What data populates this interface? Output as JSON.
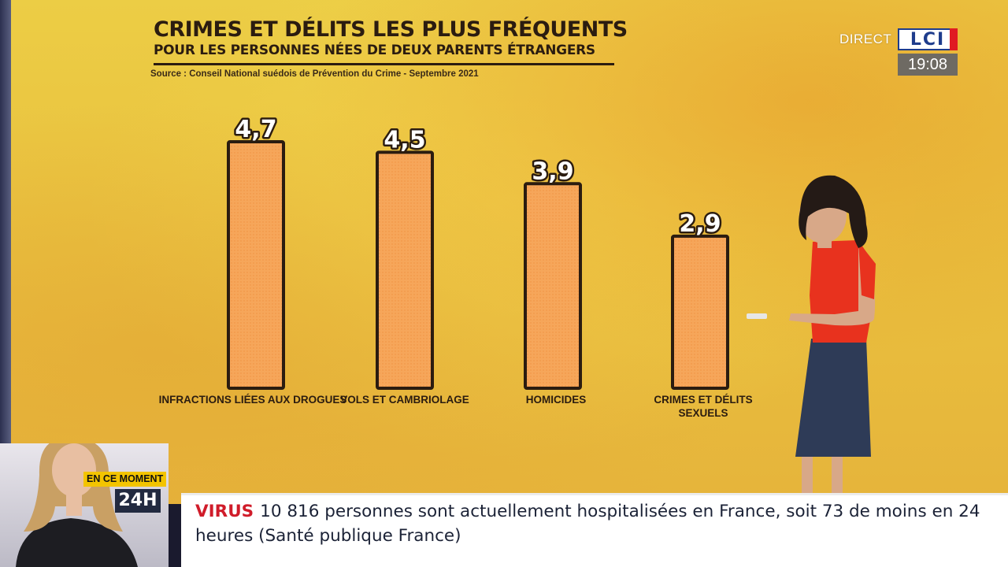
{
  "chart_data": {
    "type": "bar",
    "title": "CRIMES ET DÉLITS LES PLUS FRÉQUENTS",
    "subtitle": "POUR LES PERSONNES NÉES DE DEUX PARENTS ÉTRANGERS",
    "source": "Source : Conseil National suédois de Prévention du Crime - Septembre 2021",
    "categories": [
      "INFRACTIONS LIÉES AUX DROGUES",
      "VOLS ET CAMBRIOLAGE",
      "HOMICIDES",
      "CRIMES ET DÉLITS SEXUELS"
    ],
    "values": [
      4.7,
      4.5,
      3.9,
      2.9
    ],
    "value_labels": [
      "4,7",
      "4,5",
      "3,9",
      "2,9"
    ],
    "xlabel": "",
    "ylabel": "",
    "ylim": [
      0,
      4.7
    ],
    "grid": false,
    "bar_color": "#f6a65a",
    "bar_outline": "#2b1c10"
  },
  "broadcast": {
    "live_label": "DIRECT",
    "channel_logo": "LCI",
    "clock": "19:08",
    "segment_badge": "EN CE MOMENT",
    "segment_time": "24H"
  },
  "ticker": {
    "category": "VIRUS",
    "text": "10 816 personnes sont actuellement hospitalisées en France, soit 73 de moins en 24 heures (Santé publique France)"
  },
  "colors": {
    "background": "#eccd45",
    "ticker_category": "#d01c2a",
    "logo_blue": "#1e3c8c",
    "logo_red": "#e01b22"
  }
}
